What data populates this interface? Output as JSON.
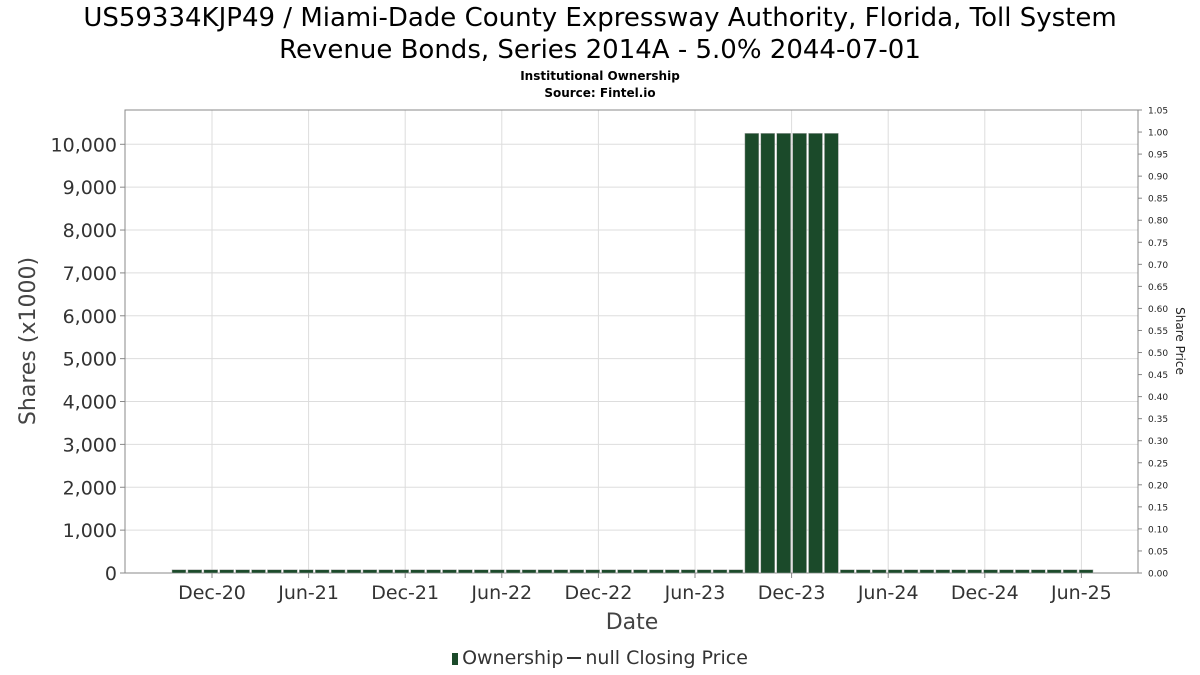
{
  "chart_data": {
    "type": "bar",
    "title": "US59334KJP49 / Miami-Dade County Expressway Authority, Florida, Toll System Revenue Bonds, Series 2014A - 5.0% 2044-07-01",
    "title_line1": "US59334KJP49 / Miami-Dade County Expressway Authority, Florida, Toll System",
    "title_line2": "Revenue Bonds, Series 2014A - 5.0% 2044-07-01",
    "subtitle": "Institutional Ownership",
    "source": "Source: Fintel.io",
    "xlabel": "Date",
    "ylabel": "Shares (x1000)",
    "y2label": "Share Price",
    "ylim": [
      0,
      10800
    ],
    "y2lim": [
      0,
      1.05
    ],
    "yticks": [
      "0",
      "1,000",
      "2,000",
      "3,000",
      "4,000",
      "5,000",
      "6,000",
      "7,000",
      "8,000",
      "9,000",
      "10,000"
    ],
    "y2ticks": [
      "0.00",
      "0.05",
      "0.10",
      "0.15",
      "0.20",
      "0.25",
      "0.30",
      "0.35",
      "0.40",
      "0.45",
      "0.50",
      "0.55",
      "0.60",
      "0.65",
      "0.70",
      "0.75",
      "0.80",
      "0.85",
      "0.90",
      "0.95",
      "1.00",
      "1.05"
    ],
    "xticks": [
      "Dec-20",
      "Jun-21",
      "Dec-21",
      "Jun-22",
      "Dec-22",
      "Jun-23",
      "Dec-23",
      "Jun-24",
      "Dec-24",
      "Jun-25"
    ],
    "grid": true,
    "legend_position": "bottom",
    "series": [
      {
        "name": "Ownership",
        "color": "#1b4a2a",
        "values": [
          75,
          75,
          75,
          75,
          75,
          75,
          75,
          75,
          75,
          75,
          75,
          75,
          75,
          75,
          75,
          75,
          75,
          75,
          75,
          75,
          75,
          75,
          75,
          75,
          75,
          75,
          75,
          75,
          75,
          75,
          75,
          75,
          75,
          75,
          75,
          75,
          10255,
          10255,
          10255,
          10255,
          10255,
          10255,
          75,
          75,
          75,
          75,
          75,
          75,
          75,
          75,
          75,
          75,
          75,
          75,
          75,
          75,
          75,
          75
        ]
      },
      {
        "name": "null Closing Price",
        "color": "#333333",
        "values": []
      }
    ],
    "legend": {
      "ownership": "Ownership",
      "price": "null Closing Price"
    }
  }
}
